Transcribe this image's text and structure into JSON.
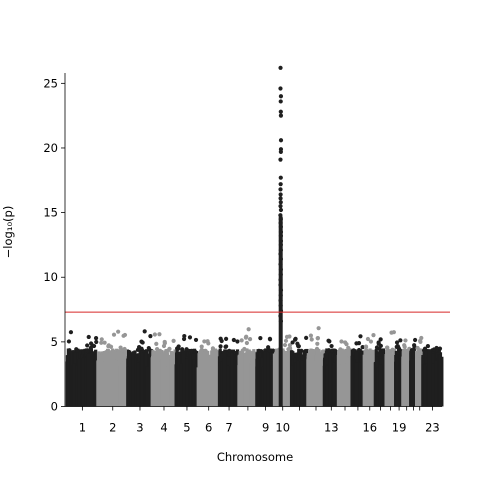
{
  "chart_data": {
    "type": "scatter",
    "subtype": "manhattan",
    "title": "",
    "xlabel": "Chromosome",
    "ylabel": "−log₁₀(p)",
    "ylim": [
      0,
      25.8
    ],
    "yticks": [
      0,
      5,
      10,
      15,
      20,
      25
    ],
    "significance_threshold": 7.3,
    "threshold_color": "#d62728",
    "colors": {
      "odd": "#1f1f1f",
      "even": "#969696"
    },
    "grid": false,
    "legend": "none",
    "chromosomes": [
      {
        "id": "1",
        "label": "1",
        "size": 249,
        "max_background": 5.8
      },
      {
        "id": "2",
        "label": "2",
        "size": 243,
        "max_background": 6.3
      },
      {
        "id": "3",
        "label": "3",
        "size": 198,
        "max_background": 6.0
      },
      {
        "id": "4",
        "label": "4",
        "size": 191,
        "max_background": 5.8
      },
      {
        "id": "5",
        "label": "5",
        "size": 181,
        "max_background": 5.8
      },
      {
        "id": "6",
        "label": "6",
        "size": 171,
        "max_background": 5.1
      },
      {
        "id": "7",
        "label": "7",
        "size": 159,
        "max_background": 5.5
      },
      {
        "id": "8",
        "label": "",
        "size": 146,
        "max_background": 6.0
      },
      {
        "id": "9",
        "label": "9",
        "size": 141,
        "max_background": 5.8
      },
      {
        "id": "10",
        "label": "10",
        "size": 136,
        "max_background": 5.8
      },
      {
        "id": "11",
        "label": "",
        "size": 135,
        "max_background": 5.5
      },
      {
        "id": "12",
        "label": "",
        "size": 133,
        "max_background": 6.3
      },
      {
        "id": "13",
        "label": "13",
        "size": 115,
        "max_background": 5.5
      },
      {
        "id": "14",
        "label": "",
        "size": 107,
        "max_background": 5.1
      },
      {
        "id": "15",
        "label": "",
        "size": 102,
        "max_background": 5.9
      },
      {
        "id": "16",
        "label": "16",
        "size": 90,
        "max_background": 5.6
      },
      {
        "id": "17",
        "label": "",
        "size": 83,
        "max_background": 5.2
      },
      {
        "id": "18",
        "label": "",
        "size": 80,
        "max_background": 6.4
      },
      {
        "id": "19",
        "label": "19",
        "size": 59,
        "max_background": 5.2
      },
      {
        "id": "20",
        "label": "",
        "size": 64,
        "max_background": 5.3
      },
      {
        "id": "21",
        "label": "",
        "size": 48,
        "max_background": 5.3
      },
      {
        "id": "22",
        "label": "",
        "size": 51,
        "max_background": 5.4
      },
      {
        "id": "23",
        "label": "23",
        "size": 155,
        "max_background": 5.0
      }
    ],
    "peak": {
      "chromosome": "10",
      "values": [
        26.2,
        24.6,
        24.0,
        23.6,
        22.8,
        22.5,
        20.6,
        19.9,
        19.7,
        19.1,
        17.7,
        17.2,
        16.8,
        16.4,
        16.1,
        15.8,
        15.5,
        15.2,
        14.8,
        14.5,
        14.2,
        13.9,
        13.5,
        13.2,
        12.8,
        12.5,
        12.1,
        11.8,
        11.4,
        11.0,
        10.6,
        10.2,
        9.8,
        9.4,
        9.0,
        8.6,
        8.2,
        7.8,
        7.4,
        7.0,
        6.6
      ]
    }
  }
}
